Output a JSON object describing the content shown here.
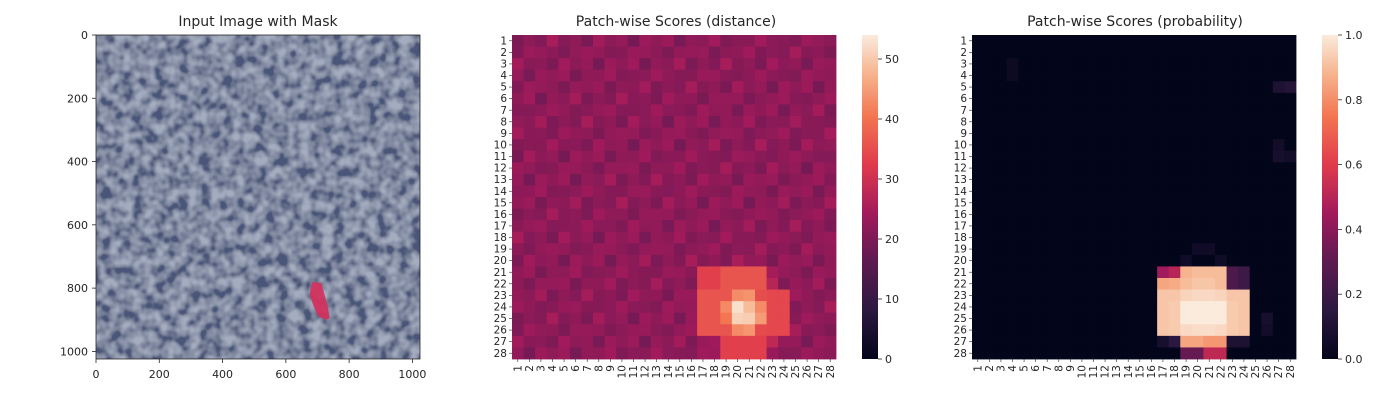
{
  "chart_data": [
    {
      "type": "image",
      "title": "Input Image with Mask",
      "xlim": [
        0,
        1024
      ],
      "ylim": [
        1024,
        0
      ],
      "xticks": [
        "0",
        "200",
        "400",
        "600",
        "800",
        "1000"
      ],
      "xtick_values": [
        0,
        200,
        400,
        600,
        800,
        1000
      ],
      "yticks": [
        "0",
        "200",
        "400",
        "600",
        "800",
        "1000"
      ],
      "ytick_values": [
        0,
        200,
        400,
        600,
        800,
        1000
      ],
      "background_color": "#4a5779",
      "mask_color": "#d4305c",
      "mask_polygon": [
        [
          685,
          780
        ],
        [
          712,
          784
        ],
        [
          722,
          820
        ],
        [
          733,
          860
        ],
        [
          738,
          895
        ],
        [
          726,
          900
        ],
        [
          702,
          888
        ],
        [
          688,
          858
        ],
        [
          675,
          820
        ],
        [
          680,
          792
        ]
      ]
    },
    {
      "type": "heatmap",
      "title": "Patch-wise Scores (distance)",
      "row_labels": [
        "1",
        "2",
        "3",
        "4",
        "5",
        "6",
        "7",
        "8",
        "9",
        "10",
        "11",
        "12",
        "13",
        "14",
        "15",
        "16",
        "17",
        "18",
        "19",
        "20",
        "21",
        "22",
        "23",
        "24",
        "25",
        "26",
        "27",
        "28"
      ],
      "col_labels": [
        "1",
        "2",
        "3",
        "4",
        "5",
        "6",
        "7",
        "8",
        "9",
        "10",
        "11",
        "12",
        "13",
        "14",
        "15",
        "16",
        "17",
        "18",
        "19",
        "20",
        "21",
        "22",
        "23",
        "24",
        "25",
        "26",
        "27",
        "28"
      ],
      "vmin": 0,
      "vmax": 54,
      "colorbar_ticks": [
        0,
        10,
        20,
        30,
        40,
        50
      ],
      "colormap": "rocket",
      "hotspot": {
        "center_row": 24.5,
        "center_col": 20.5,
        "peak": 54,
        "base": 22
      },
      "annotated_blocks": [
        {
          "rows": [
            21,
            22
          ],
          "cols": [
            17,
            18
          ],
          "value": 33
        },
        {
          "rows": [
            21,
            22
          ],
          "cols": [
            19,
            22
          ],
          "value": 36
        },
        {
          "rows": [
            23,
            26
          ],
          "cols": [
            17,
            18
          ],
          "value": 36
        },
        {
          "rows": [
            23,
            26
          ],
          "cols": [
            23,
            24
          ],
          "value": 34
        },
        {
          "rows": [
            27,
            28
          ],
          "cols": [
            19,
            22
          ],
          "value": 33
        }
      ]
    },
    {
      "type": "heatmap",
      "title": "Patch-wise Scores (probability)",
      "row_labels": [
        "1",
        "2",
        "3",
        "4",
        "5",
        "6",
        "7",
        "8",
        "9",
        "10",
        "11",
        "12",
        "13",
        "14",
        "15",
        "16",
        "17",
        "18",
        "19",
        "20",
        "21",
        "22",
        "23",
        "24",
        "25",
        "26",
        "27",
        "28"
      ],
      "col_labels": [
        "1",
        "2",
        "3",
        "4",
        "5",
        "6",
        "7",
        "8",
        "9",
        "10",
        "11",
        "12",
        "13",
        "14",
        "15",
        "16",
        "17",
        "18",
        "19",
        "20",
        "21",
        "22",
        "23",
        "24",
        "25",
        "26",
        "27",
        "28"
      ],
      "vmin": 0,
      "vmax": 1,
      "colorbar_ticks": [
        "0.0",
        "0.2",
        "0.4",
        "0.6",
        "0.8",
        "1.0"
      ],
      "colorbar_tick_values": [
        0,
        0.2,
        0.4,
        0.6,
        0.8,
        1.0
      ],
      "colormap": "rocket",
      "hot_cells": [
        {
          "row": 21,
          "col": 17,
          "value": 0.45
        },
        {
          "row": 21,
          "col": 18,
          "value": 0.5
        },
        {
          "row": 21,
          "col": 19,
          "value": 0.88
        },
        {
          "row": 21,
          "col": 20,
          "value": 0.9
        },
        {
          "row": 21,
          "col": 21,
          "value": 0.9
        },
        {
          "row": 21,
          "col": 22,
          "value": 0.9
        },
        {
          "row": 21,
          "col": 23,
          "value": 0.25
        },
        {
          "row": 21,
          "col": 24,
          "value": 0.2
        },
        {
          "row": 22,
          "col": 17,
          "value": 0.85
        },
        {
          "row": 22,
          "col": 18,
          "value": 0.86
        },
        {
          "row": 22,
          "col": 19,
          "value": 0.9
        },
        {
          "row": 22,
          "col": 20,
          "value": 0.92
        },
        {
          "row": 22,
          "col": 21,
          "value": 0.92
        },
        {
          "row": 22,
          "col": 22,
          "value": 0.9
        },
        {
          "row": 22,
          "col": 23,
          "value": 0.25
        },
        {
          "row": 22,
          "col": 24,
          "value": 0.2
        },
        {
          "row": 23,
          "col": 17,
          "value": 0.92
        },
        {
          "row": 23,
          "col": 18,
          "value": 0.92
        },
        {
          "row": 23,
          "col": 19,
          "value": 0.95
        },
        {
          "row": 23,
          "col": 20,
          "value": 0.96
        },
        {
          "row": 23,
          "col": 21,
          "value": 0.96
        },
        {
          "row": 23,
          "col": 22,
          "value": 0.95
        },
        {
          "row": 23,
          "col": 23,
          "value": 0.92
        },
        {
          "row": 23,
          "col": 24,
          "value": 0.92
        },
        {
          "row": 24,
          "col": 17,
          "value": 0.92
        },
        {
          "row": 24,
          "col": 18,
          "value": 0.93
        },
        {
          "row": 24,
          "col": 19,
          "value": 1.0
        },
        {
          "row": 24,
          "col": 20,
          "value": 1.0
        },
        {
          "row": 24,
          "col": 21,
          "value": 1.0
        },
        {
          "row": 24,
          "col": 22,
          "value": 1.0
        },
        {
          "row": 24,
          "col": 23,
          "value": 0.93
        },
        {
          "row": 24,
          "col": 24,
          "value": 0.92
        },
        {
          "row": 25,
          "col": 17,
          "value": 0.92
        },
        {
          "row": 25,
          "col": 18,
          "value": 0.93
        },
        {
          "row": 25,
          "col": 19,
          "value": 1.0
        },
        {
          "row": 25,
          "col": 20,
          "value": 1.0
        },
        {
          "row": 25,
          "col": 21,
          "value": 1.0
        },
        {
          "row": 25,
          "col": 22,
          "value": 1.0
        },
        {
          "row": 25,
          "col": 23,
          "value": 0.93
        },
        {
          "row": 25,
          "col": 24,
          "value": 0.92
        },
        {
          "row": 26,
          "col": 17,
          "value": 0.92
        },
        {
          "row": 26,
          "col": 18,
          "value": 0.93
        },
        {
          "row": 26,
          "col": 19,
          "value": 0.96
        },
        {
          "row": 26,
          "col": 20,
          "value": 0.97
        },
        {
          "row": 26,
          "col": 21,
          "value": 0.97
        },
        {
          "row": 26,
          "col": 22,
          "value": 0.96
        },
        {
          "row": 26,
          "col": 23,
          "value": 0.93
        },
        {
          "row": 26,
          "col": 24,
          "value": 0.92
        },
        {
          "row": 27,
          "col": 17,
          "value": 0.08
        },
        {
          "row": 27,
          "col": 18,
          "value": 0.15
        },
        {
          "row": 27,
          "col": 19,
          "value": 0.85
        },
        {
          "row": 27,
          "col": 20,
          "value": 0.85
        },
        {
          "row": 27,
          "col": 21,
          "value": 0.82
        },
        {
          "row": 27,
          "col": 22,
          "value": 0.82
        },
        {
          "row": 27,
          "col": 23,
          "value": 0.1
        },
        {
          "row": 27,
          "col": 24,
          "value": 0.1
        },
        {
          "row": 28,
          "col": 19,
          "value": 0.32
        },
        {
          "row": 28,
          "col": 20,
          "value": 0.32
        },
        {
          "row": 28,
          "col": 21,
          "value": 0.52
        },
        {
          "row": 28,
          "col": 22,
          "value": 0.52
        },
        {
          "row": 19,
          "col": 20,
          "value": 0.05
        },
        {
          "row": 19,
          "col": 21,
          "value": 0.05
        },
        {
          "row": 20,
          "col": 19,
          "value": 0.05
        },
        {
          "row": 20,
          "col": 22,
          "value": 0.05
        },
        {
          "row": 5,
          "col": 27,
          "value": 0.1
        },
        {
          "row": 5,
          "col": 28,
          "value": 0.12
        },
        {
          "row": 10,
          "col": 27,
          "value": 0.06
        },
        {
          "row": 11,
          "col": 27,
          "value": 0.08
        },
        {
          "row": 11,
          "col": 28,
          "value": 0.06
        },
        {
          "row": 25,
          "col": 26,
          "value": 0.08
        },
        {
          "row": 26,
          "col": 26,
          "value": 0.06
        },
        {
          "row": 3,
          "col": 4,
          "value": 0.04
        },
        {
          "row": 4,
          "col": 4,
          "value": 0.04
        }
      ]
    }
  ]
}
